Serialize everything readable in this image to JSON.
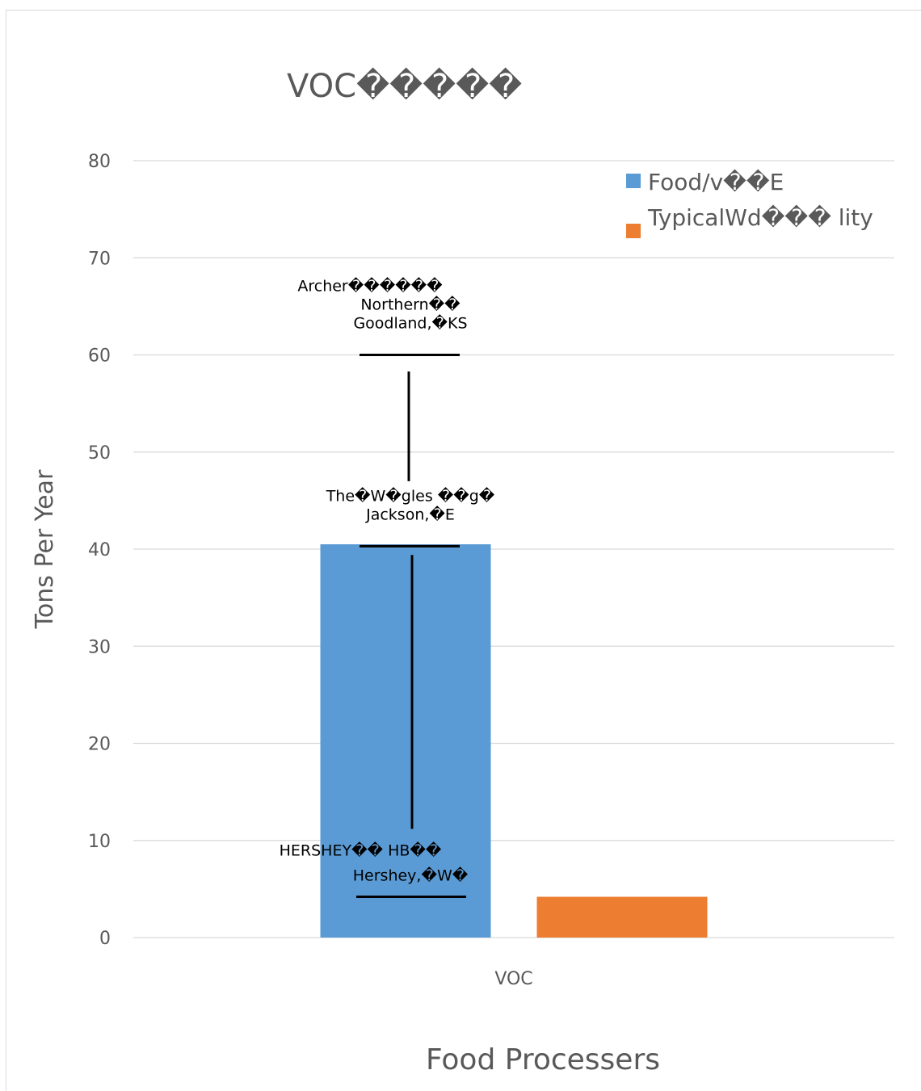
{
  "chart_data": {
    "type": "bar",
    "title": "VOC�����",
    "xlabel": "Food Processers",
    "ylabel": "Tons Per Year",
    "categories": [
      "VOC"
    ],
    "ylim": [
      0,
      80
    ],
    "yticks": [
      "0",
      "10",
      "20",
      "30",
      "40",
      "50",
      "60",
      "70",
      "80"
    ],
    "grid": true,
    "legend_position": "top-right",
    "series": [
      {
        "name": "Food/v��E",
        "values": [
          40.5
        ],
        "color": "#5b9bd5"
      },
      {
        "name": "TypicalWd��� lity",
        "values": [
          4.2
        ],
        "color": "#ed7d31"
      }
    ],
    "range_markers": [
      {
        "value": 60.0,
        "label_lines": [
          "Archer������",
          "Northern��",
          "Goodland,�KS"
        ]
      },
      {
        "value": 40.3,
        "label_lines": [
          "The�W�gles ��g�",
          "Jackson,�E"
        ]
      },
      {
        "value": 4.2,
        "label_lines": [
          "HERSHEY�� HB��",
          "Hershey,�W�"
        ]
      }
    ],
    "range_segments": [
      {
        "from": 47.0,
        "to": 58.3
      },
      {
        "from": 11.2,
        "to": 39.4
      }
    ]
  }
}
